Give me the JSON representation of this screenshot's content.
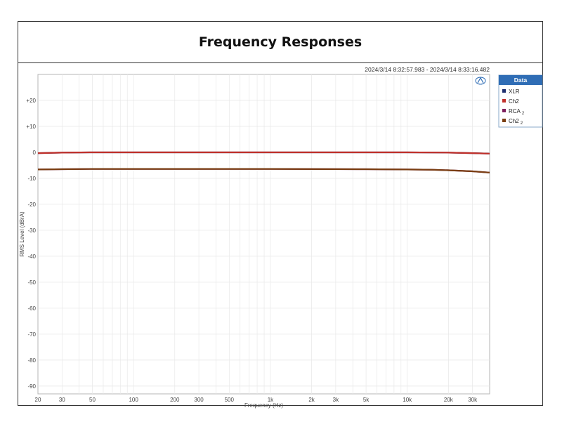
{
  "page": {
    "title": "Frequency Responses"
  },
  "chart_data": {
    "type": "line",
    "title": "",
    "timestamp": "2024/3/14 8:32:57.983 -   2024/3/14 8:33:16.482",
    "xlabel": "Frequency (Hz)",
    "ylabel": "RMS Level (dBrA)",
    "xscale": "log",
    "xlim": [
      20,
      40000
    ],
    "ylim": [
      -93,
      30
    ],
    "x_ticks": [
      20,
      30,
      50,
      100,
      200,
      300,
      500,
      1000,
      2000,
      3000,
      5000,
      10000,
      20000,
      30000
    ],
    "x_tick_labels": [
      "20",
      "30",
      "50",
      "100",
      "200",
      "300",
      "500",
      "1k",
      "2k",
      "3k",
      "5k",
      "10k",
      "20k",
      "30k"
    ],
    "y_ticks": [
      20,
      10,
      0,
      -10,
      -20,
      -30,
      -40,
      -50,
      -60,
      -70,
      -80,
      -90
    ],
    "y_tick_labels": [
      "+20",
      "+10",
      "0",
      "-10",
      "-20",
      "-30",
      "-40",
      "-50",
      "-60",
      "-70",
      "-80",
      "-90"
    ],
    "grid": true,
    "legend": {
      "title": "Data",
      "placement": "right",
      "entries": [
        {
          "name": "XLR",
          "sub": "",
          "color": "#1f2f6e"
        },
        {
          "name": "Ch2",
          "sub": "",
          "color": "#c0302a"
        },
        {
          "name": "RCA",
          "sub": "2",
          "color": "#7d1f5c"
        },
        {
          "name": "Ch2",
          "sub": "2",
          "color": "#7a3e12"
        }
      ]
    },
    "series": [
      {
        "name": "XLR",
        "color": "#1f2f6e",
        "x": [
          20,
          30,
          50,
          100,
          1000,
          10000,
          20000,
          30000,
          40000
        ],
        "y": [
          -0.3,
          -0.1,
          0,
          0,
          0,
          0,
          -0.1,
          -0.3,
          -0.5
        ]
      },
      {
        "name": "Ch2",
        "color": "#c0302a",
        "x": [
          20,
          30,
          50,
          100,
          1000,
          10000,
          20000,
          30000,
          40000
        ],
        "y": [
          -0.3,
          -0.1,
          0,
          0,
          0,
          0,
          -0.1,
          -0.3,
          -0.5
        ]
      },
      {
        "name": "RCA 2",
        "color": "#7d1f5c",
        "x": [
          20,
          30,
          50,
          100,
          1000,
          5000,
          10000,
          15000,
          20000,
          30000,
          40000
        ],
        "y": [
          -6.6,
          -6.5,
          -6.4,
          -6.4,
          -6.4,
          -6.5,
          -6.6,
          -6.7,
          -6.9,
          -7.3,
          -7.8
        ]
      },
      {
        "name": "Ch2 2",
        "color": "#7a3e12",
        "x": [
          20,
          30,
          50,
          100,
          1000,
          5000,
          10000,
          15000,
          20000,
          30000,
          40000
        ],
        "y": [
          -6.6,
          -6.5,
          -6.4,
          -6.4,
          -6.4,
          -6.5,
          -6.6,
          -6.7,
          -6.9,
          -7.3,
          -7.8
        ]
      }
    ]
  }
}
